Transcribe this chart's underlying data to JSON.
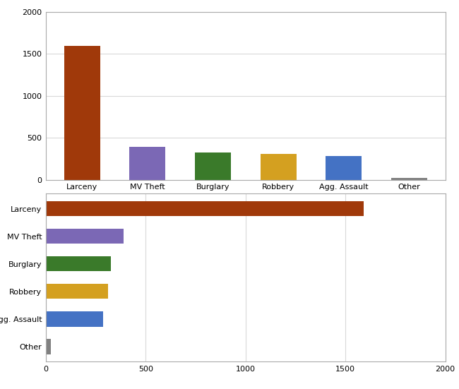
{
  "categories": [
    "Larceny",
    "MV Theft",
    "Burglary",
    "Robbery",
    "Agg. Assault",
    "Other"
  ],
  "values": [
    1590,
    390,
    325,
    310,
    285,
    25
  ],
  "colors": [
    "#a0390a",
    "#7b68b5",
    "#3a7a2a",
    "#d4a020",
    "#4472c4",
    "#808080"
  ],
  "ylim": [
    0,
    2000
  ],
  "xlim": [
    0,
    2000
  ],
  "yticks": [
    0,
    500,
    1000,
    1500,
    2000
  ],
  "xticks": [
    0,
    500,
    1000,
    1500,
    2000
  ],
  "grid_color": "#d9d9d9",
  "background_color": "#ffffff",
  "bar_edge_color": "none",
  "spine_color": "#aaaaaa"
}
